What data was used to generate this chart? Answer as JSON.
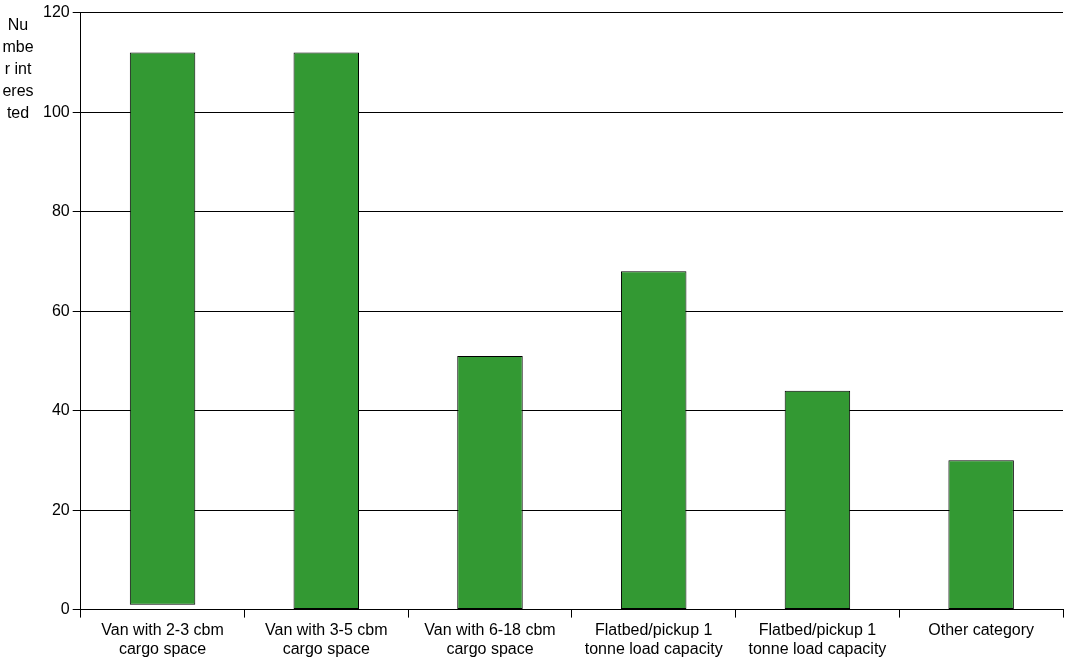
{
  "chart_data": {
    "type": "bar",
    "ylabel": "Number interested",
    "categories": [
      "Van with 2-3 cbm cargo space",
      "Van with 3-5 cbm cargo space",
      "Van with 6-18 cbm cargo space",
      "Flatbed/pickup 1 tonne load capacity",
      "Flatbed/pickup 1 tonne load capacity",
      "Other category"
    ],
    "values": [
      111,
      112,
      51,
      68,
      44,
      30
    ],
    "base": [
      1,
      0,
      0,
      0,
      0,
      0
    ],
    "color": "#339933",
    "ylim": [
      0,
      120
    ],
    "yticks": [
      0,
      20,
      40,
      60,
      80,
      100,
      120
    ],
    "grid": "y",
    "legend": false
  }
}
